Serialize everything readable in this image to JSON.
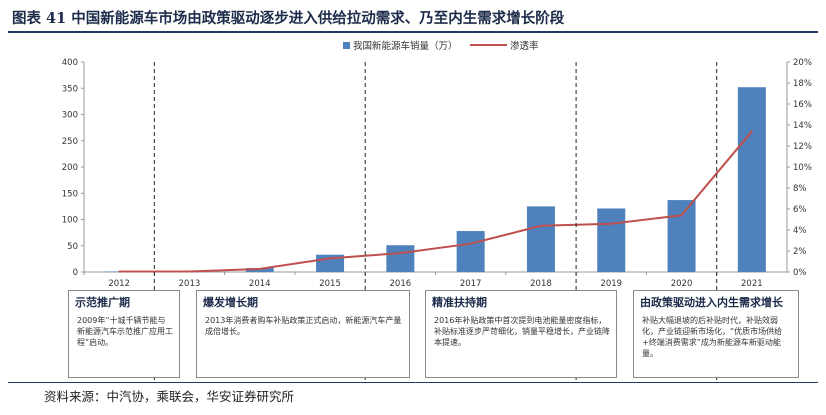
{
  "figure": {
    "title": "图表 41 中国新能源车市场由政策驱动逐步进入供给拉动需求、乃至内生需求增长阶段",
    "source": "资料来源：中汽协，乘联会，华安证券研究所"
  },
  "chart_data": {
    "type": "bar",
    "categories": [
      "2012",
      "2013",
      "2014",
      "2015",
      "2016",
      "2017",
      "2018",
      "2019",
      "2020",
      "2021"
    ],
    "series": [
      {
        "name": "我国新能源车销量（万）",
        "type": "bar",
        "axis": "left",
        "color": "#4f81bd",
        "values": [
          1,
          1.5,
          7.5,
          33,
          51,
          78,
          125,
          121,
          137,
          352
        ]
      },
      {
        "name": "渗透率",
        "type": "line",
        "axis": "right",
        "color": "#c0504d",
        "values": [
          0.05,
          0.05,
          0.3,
          1.3,
          1.8,
          2.7,
          4.4,
          4.6,
          5.4,
          13.4
        ]
      }
    ],
    "y_left": {
      "min": 0,
      "max": 400,
      "ticks": [
        "0",
        "50",
        "100",
        "150",
        "200",
        "250",
        "300",
        "350",
        "400"
      ]
    },
    "y_right": {
      "min": 0,
      "max": 20,
      "ticks": [
        "0%",
        "2%",
        "4%",
        "6%",
        "8%",
        "10%",
        "12%",
        "14%",
        "16%",
        "18%",
        "20%"
      ]
    },
    "legend_position": "top",
    "grid": false
  },
  "phases": [
    {
      "title": "示范推广期",
      "desc": "2009年“十城千辆节能与新能源汽车示范推广应用工程”启动。"
    },
    {
      "title": "爆发增长期",
      "desc": "2013年消费者购车补贴政策正式启动，新能源汽车产量成倍增长。"
    },
    {
      "title": "精准扶持期",
      "desc": "2016年补贴政策中首次提到电池能量密度指标，补贴标准逐步严苛细化，销量平稳增长，产业链降本提速。"
    },
    {
      "title": "由政策驱动进入内生需求增长",
      "desc": "补贴大幅退坡的后补贴时代，补贴效弱化，产业链迎新市场化，“优质市场供给+终端消费需求”成为新能源车新驱动能量。"
    }
  ]
}
